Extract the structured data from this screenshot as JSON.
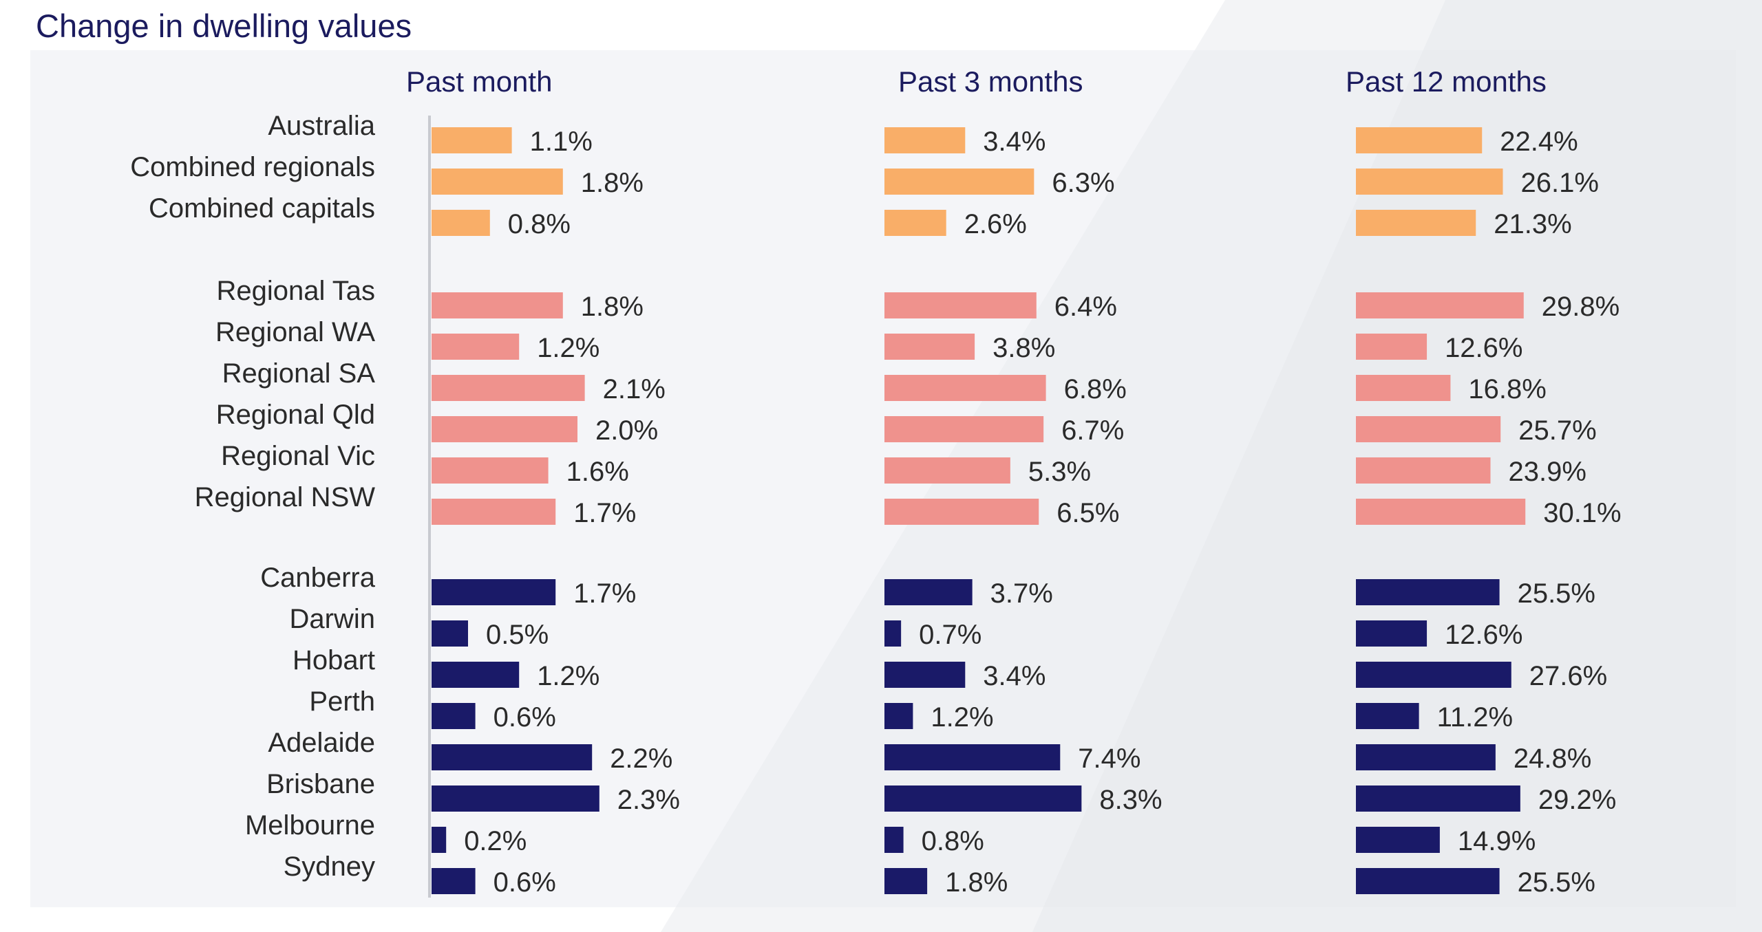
{
  "chart_data": {
    "type": "bar",
    "orientation": "horizontal",
    "title": "Change in dwelling values",
    "categories": [
      "Australia",
      "Combined regionals",
      "Combined capitals",
      "Regional Tas",
      "Regional WA",
      "Regional SA",
      "Regional Qld",
      "Regional Vic",
      "Regional NSW",
      "Canberra",
      "Darwin",
      "Hobart",
      "Perth",
      "Adelaide",
      "Brisbane",
      "Melbourne",
      "Sydney"
    ],
    "groups": [
      {
        "count": 3,
        "color": "#f9ae68"
      },
      {
        "count": 6,
        "color": "#ef928d"
      },
      {
        "count": 8,
        "color": "#1a1a68"
      }
    ],
    "series": [
      {
        "name": "Past month",
        "values": [
          1.1,
          1.8,
          0.8,
          1.8,
          1.2,
          2.1,
          2.0,
          1.6,
          1.7,
          1.7,
          0.5,
          1.2,
          0.6,
          2.2,
          2.3,
          0.2,
          0.6
        ],
        "labels": [
          "1.1%",
          "1.8%",
          "0.8%",
          "1.8%",
          "1.2%",
          "2.1%",
          "2.0%",
          "1.6%",
          "1.7%",
          "1.7%",
          "0.5%",
          "1.2%",
          "0.6%",
          "2.2%",
          "2.3%",
          "0.2%",
          "0.6%"
        ]
      },
      {
        "name": "Past 3 months",
        "values": [
          3.4,
          6.3,
          2.6,
          6.4,
          3.8,
          6.8,
          6.7,
          5.3,
          6.5,
          3.7,
          0.7,
          3.4,
          1.2,
          7.4,
          8.3,
          0.8,
          1.8
        ],
        "labels": [
          "3.4%",
          "6.3%",
          "2.6%",
          "6.4%",
          "3.8%",
          "6.8%",
          "6.7%",
          "5.3%",
          "6.5%",
          "3.7%",
          "0.7%",
          "3.4%",
          "1.2%",
          "7.4%",
          "8.3%",
          "0.8%",
          "1.8%"
        ]
      },
      {
        "name": "Past 12 months",
        "values": [
          22.4,
          26.1,
          21.3,
          29.8,
          12.6,
          16.8,
          25.7,
          23.9,
          30.1,
          25.5,
          12.6,
          27.6,
          11.2,
          24.8,
          29.2,
          14.9,
          25.5
        ],
        "labels": [
          "22.4%",
          "26.1%",
          "21.3%",
          "29.8%",
          "12.6%",
          "16.8%",
          "25.7%",
          "23.9%",
          "30.1%",
          "25.5%",
          "12.6%",
          "27.6%",
          "11.2%",
          "24.8%",
          "29.2%",
          "14.9%",
          "25.5%"
        ]
      }
    ],
    "colors": {
      "capitals_aggregate": "#f9ae68",
      "regional": "#ef928d",
      "capital_cities": "#1a1a68",
      "title_text": "#1b1b5e",
      "label_text": "#2a2a2a"
    },
    "grid": false,
    "legend": "none"
  }
}
